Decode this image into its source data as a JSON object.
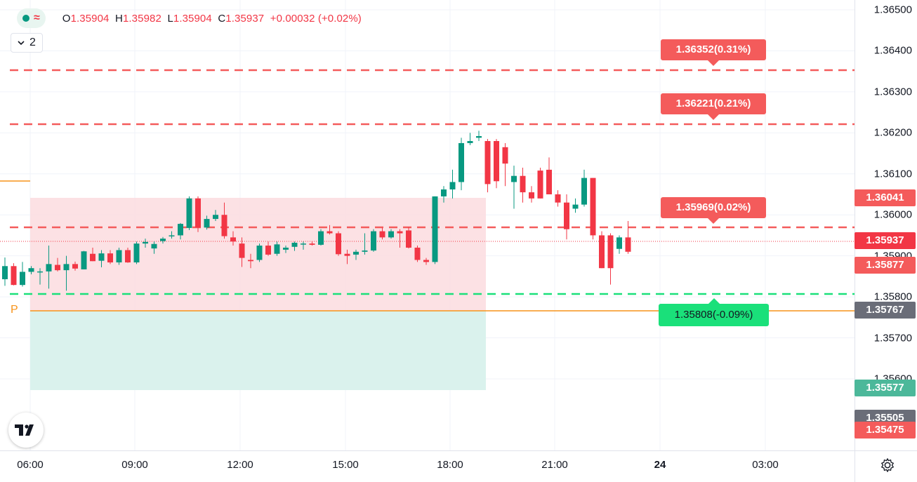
{
  "legend": {
    "icon": "symbol-status-icon",
    "ohlc": {
      "o_key": "O",
      "o": "1.35904",
      "h_key": "H",
      "h": "1.35982",
      "l_key": "L",
      "l": "1.35904",
      "c_key": "C",
      "c": "1.35937",
      "change": "+0.00032 (+0.02%)"
    }
  },
  "indicators_toggle": {
    "count": "2"
  },
  "pivot_label": "P",
  "price_axis": {
    "ticks": [
      "1.36500",
      "1.36400",
      "1.36300",
      "1.36200",
      "1.36100",
      "1.36000",
      "1.35900",
      "1.35800",
      "1.35700",
      "1.35600"
    ],
    "badges": [
      {
        "text": "1.36041",
        "color": "#f45b5b"
      },
      {
        "text": "1.35937",
        "color": "#f23645"
      },
      {
        "text": "1.35877",
        "color": "#f45b5b"
      },
      {
        "text": "1.35767",
        "color": "#6a6d78"
      },
      {
        "text": "1.35577",
        "color": "#4cb89a"
      },
      {
        "text": "1.35505",
        "color": "#6a6d78"
      },
      {
        "text": "1.35475",
        "color": "#f45b5b"
      }
    ]
  },
  "time_axis": [
    "06:00",
    "09:00",
    "12:00",
    "15:00",
    "18:00",
    "21:00",
    "24",
    "03:00"
  ],
  "level_tags": [
    {
      "text": "1.36352(0.31%)",
      "kind": "red"
    },
    {
      "text": "1.36221(0.21%)",
      "kind": "red"
    },
    {
      "text": "1.35969(0.02%)",
      "kind": "red"
    },
    {
      "text": "1.35808(-0.09%)",
      "kind": "green"
    }
  ],
  "colors": {
    "up": "#089981",
    "down": "#f23645",
    "pivot": "#f7931a",
    "level_red": "#f45b5b",
    "level_green": "#1ae07a",
    "loss_zone": "#fbdcdf",
    "profit_zone": "#d8f1ec"
  },
  "chart_data": {
    "type": "candlestick",
    "symbol_interval": "15m",
    "y_unit": "price",
    "ylim": [
      1.3543,
      1.3652
    ],
    "candles": [
      {
        "o": 1.35843,
        "h": 1.35896,
        "l": 1.35827,
        "c": 1.35875
      },
      {
        "o": 1.35875,
        "h": 1.35882,
        "l": 1.35828,
        "c": 1.35829
      },
      {
        "o": 1.35829,
        "h": 1.35885,
        "l": 1.35825,
        "c": 1.35861
      },
      {
        "o": 1.35861,
        "h": 1.35875,
        "l": 1.35855,
        "c": 1.3587
      },
      {
        "o": 1.3586,
        "h": 1.3587,
        "l": 1.3583,
        "c": 1.35862
      },
      {
        "o": 1.35862,
        "h": 1.35925,
        "l": 1.3582,
        "c": 1.3588
      },
      {
        "o": 1.35878,
        "h": 1.35895,
        "l": 1.35862,
        "c": 1.35865
      },
      {
        "o": 1.35865,
        "h": 1.359,
        "l": 1.35815,
        "c": 1.3588
      },
      {
        "o": 1.3588,
        "h": 1.35886,
        "l": 1.35864,
        "c": 1.35869
      },
      {
        "o": 1.35867,
        "h": 1.35912,
        "l": 1.35867,
        "c": 1.35911
      },
      {
        "o": 1.35905,
        "h": 1.3592,
        "l": 1.35887,
        "c": 1.35887
      },
      {
        "o": 1.35888,
        "h": 1.35914,
        "l": 1.35872,
        "c": 1.35906
      },
      {
        "o": 1.35906,
        "h": 1.35914,
        "l": 1.3588,
        "c": 1.35884
      },
      {
        "o": 1.35884,
        "h": 1.3592,
        "l": 1.35878,
        "c": 1.35914
      },
      {
        "o": 1.35914,
        "h": 1.3592,
        "l": 1.35883,
        "c": 1.35884
      },
      {
        "o": 1.35884,
        "h": 1.35935,
        "l": 1.3588,
        "c": 1.3593
      },
      {
        "o": 1.3593,
        "h": 1.35942,
        "l": 1.3592,
        "c": 1.35934
      },
      {
        "o": 1.35918,
        "h": 1.35935,
        "l": 1.35905,
        "c": 1.35929
      },
      {
        "o": 1.35936,
        "h": 1.35946,
        "l": 1.3593,
        "c": 1.35942
      },
      {
        "o": 1.35948,
        "h": 1.3596,
        "l": 1.35942,
        "c": 1.3595
      },
      {
        "o": 1.3595,
        "h": 1.3598,
        "l": 1.3594,
        "c": 1.35978
      },
      {
        "o": 1.35968,
        "h": 1.36045,
        "l": 1.35963,
        "c": 1.3604
      },
      {
        "o": 1.3604,
        "h": 1.36045,
        "l": 1.35958,
        "c": 1.35969
      },
      {
        "o": 1.35969,
        "h": 1.35998,
        "l": 1.35964,
        "c": 1.3599
      },
      {
        "o": 1.3599,
        "h": 1.36012,
        "l": 1.35985,
        "c": 1.36
      },
      {
        "o": 1.36,
        "h": 1.3603,
        "l": 1.35942,
        "c": 1.35948
      },
      {
        "o": 1.35945,
        "h": 1.3596,
        "l": 1.35925,
        "c": 1.35935
      },
      {
        "o": 1.3593,
        "h": 1.35945,
        "l": 1.35873,
        "c": 1.35895
      },
      {
        "o": 1.3589,
        "h": 1.35905,
        "l": 1.3587,
        "c": 1.35887
      },
      {
        "o": 1.3589,
        "h": 1.3593,
        "l": 1.35885,
        "c": 1.35925
      },
      {
        "o": 1.35925,
        "h": 1.35935,
        "l": 1.359,
        "c": 1.35903
      },
      {
        "o": 1.35905,
        "h": 1.35935,
        "l": 1.359,
        "c": 1.35928
      },
      {
        "o": 1.35915,
        "h": 1.35925,
        "l": 1.35907,
        "c": 1.3592
      },
      {
        "o": 1.35922,
        "h": 1.35935,
        "l": 1.35912,
        "c": 1.35932
      },
      {
        "o": 1.35928,
        "h": 1.35935,
        "l": 1.35915,
        "c": 1.3593
      },
      {
        "o": 1.3593,
        "h": 1.35935,
        "l": 1.35925,
        "c": 1.35927
      },
      {
        "o": 1.35927,
        "h": 1.35965,
        "l": 1.35925,
        "c": 1.3596
      },
      {
        "o": 1.3596,
        "h": 1.35975,
        "l": 1.35952,
        "c": 1.35955
      },
      {
        "o": 1.35955,
        "h": 1.3596,
        "l": 1.359,
        "c": 1.35904
      },
      {
        "o": 1.35905,
        "h": 1.35915,
        "l": 1.3588,
        "c": 1.359
      },
      {
        "o": 1.35903,
        "h": 1.35915,
        "l": 1.3589,
        "c": 1.3591
      },
      {
        "o": 1.3591,
        "h": 1.35955,
        "l": 1.35903,
        "c": 1.35913
      },
      {
        "o": 1.35913,
        "h": 1.35965,
        "l": 1.3591,
        "c": 1.3596
      },
      {
        "o": 1.3596,
        "h": 1.35968,
        "l": 1.3594,
        "c": 1.35945
      },
      {
        "o": 1.35945,
        "h": 1.35965,
        "l": 1.35942,
        "c": 1.3596
      },
      {
        "o": 1.3596,
        "h": 1.35965,
        "l": 1.3592,
        "c": 1.35955
      },
      {
        "o": 1.35962,
        "h": 1.3597,
        "l": 1.35918,
        "c": 1.3592
      },
      {
        "o": 1.3592,
        "h": 1.35925,
        "l": 1.35885,
        "c": 1.3589
      },
      {
        "o": 1.3589,
        "h": 1.35895,
        "l": 1.35878,
        "c": 1.35885
      },
      {
        "o": 1.35885,
        "h": 1.36045,
        "l": 1.3588,
        "c": 1.36045
      },
      {
        "o": 1.36045,
        "h": 1.3607,
        "l": 1.3603,
        "c": 1.36062
      },
      {
        "o": 1.36062,
        "h": 1.3611,
        "l": 1.3604,
        "c": 1.3608
      },
      {
        "o": 1.3608,
        "h": 1.36188,
        "l": 1.3606,
        "c": 1.36175
      },
      {
        "o": 1.36175,
        "h": 1.362,
        "l": 1.3617,
        "c": 1.3618
      },
      {
        "o": 1.36188,
        "h": 1.36205,
        "l": 1.3618,
        "c": 1.36192
      },
      {
        "o": 1.3618,
        "h": 1.36185,
        "l": 1.36055,
        "c": 1.36075
      },
      {
        "o": 1.3618,
        "h": 1.36185,
        "l": 1.36065,
        "c": 1.36082
      },
      {
        "o": 1.36165,
        "h": 1.36175,
        "l": 1.3607,
        "c": 1.36125
      },
      {
        "o": 1.3608,
        "h": 1.3612,
        "l": 1.36015,
        "c": 1.36095
      },
      {
        "o": 1.36095,
        "h": 1.36115,
        "l": 1.3603,
        "c": 1.36055
      },
      {
        "o": 1.36055,
        "h": 1.3607,
        "l": 1.3603,
        "c": 1.3604
      },
      {
        "o": 1.36108,
        "h": 1.36115,
        "l": 1.3604,
        "c": 1.3604
      },
      {
        "o": 1.3611,
        "h": 1.3614,
        "l": 1.3605,
        "c": 1.3605
      },
      {
        "o": 1.3605,
        "h": 1.3606,
        "l": 1.3602,
        "c": 1.3603
      },
      {
        "o": 1.3603,
        "h": 1.3605,
        "l": 1.3594,
        "c": 1.35965
      },
      {
        "o": 1.36015,
        "h": 1.3604,
        "l": 1.36005,
        "c": 1.36025
      },
      {
        "o": 1.36025,
        "h": 1.3611,
        "l": 1.3602,
        "c": 1.3609
      },
      {
        "o": 1.3609,
        "h": 1.3609,
        "l": 1.3594,
        "c": 1.3595
      },
      {
        "o": 1.3595,
        "h": 1.3596,
        "l": 1.3587,
        "c": 1.3587
      },
      {
        "o": 1.3595,
        "h": 1.35955,
        "l": 1.3583,
        "c": 1.3587
      },
      {
        "o": 1.35917,
        "h": 1.3595,
        "l": 1.35905,
        "c": 1.35945
      },
      {
        "o": 1.35945,
        "h": 1.35985,
        "l": 1.35905,
        "c": 1.3591
      }
    ]
  }
}
